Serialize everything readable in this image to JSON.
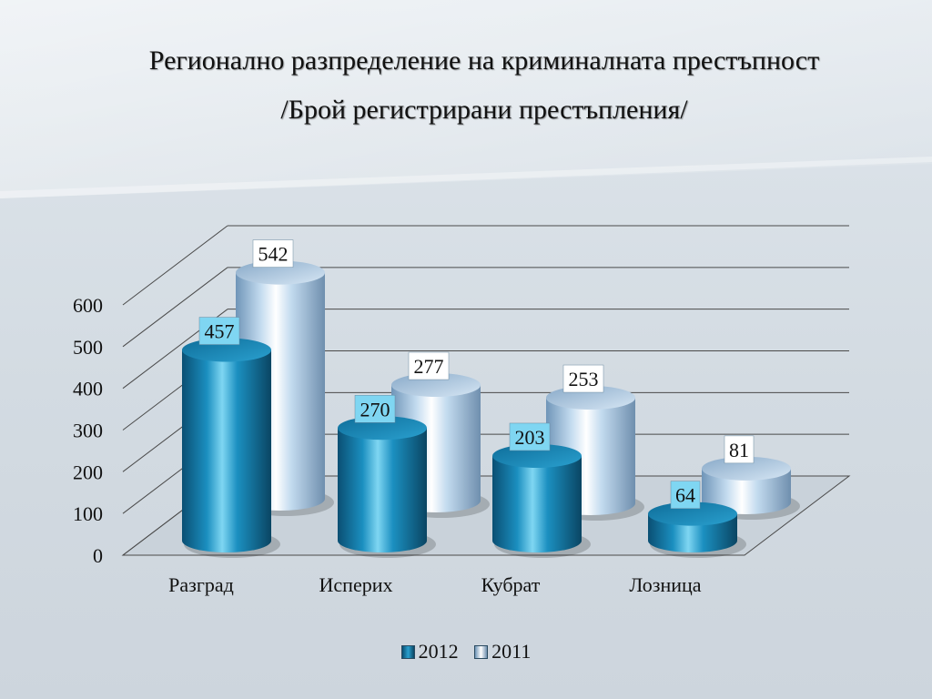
{
  "title": {
    "line1": "Регионално разпределение на криминалната престъпност",
    "line2": "/Брой регистрирани престъпления/"
  },
  "colors": {
    "series_2012": "#1a88b8",
    "series_2011": "#b8d2e8",
    "label_2012_bg": "#7fd6f2",
    "label_2011_bg": "#ffffff",
    "grid": "#4a4a4a",
    "background": "#d3dbe2"
  },
  "legend": {
    "position": "bottom",
    "items": [
      {
        "label": "2012"
      },
      {
        "label": "2011"
      }
    ]
  },
  "chart_data": {
    "type": "bar",
    "style": "3d-cylinder",
    "categories": [
      "Разград",
      "Исперих",
      "Кубрат",
      "Лозница"
    ],
    "series": [
      {
        "name": "2012",
        "values": [
          457,
          270,
          203,
          64
        ]
      },
      {
        "name": "2011",
        "values": [
          542,
          277,
          253,
          81
        ]
      }
    ],
    "ylim": [
      0,
      600
    ],
    "yticks": [
      "0",
      "100",
      "200",
      "300",
      "400",
      "500",
      "600"
    ],
    "grid": true,
    "data_labels": true
  }
}
